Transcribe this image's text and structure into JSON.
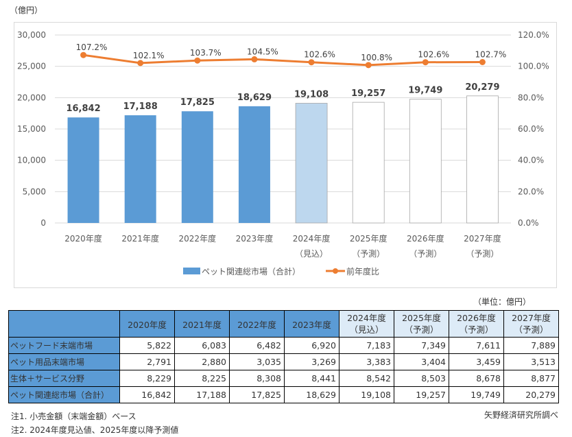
{
  "unit_label": "（億円）",
  "table_unit_label": "（単位：億円）",
  "chart_data": {
    "type": "bar+line",
    "categories": [
      "2020年度",
      "2021年度",
      "2022年度",
      "2023年度",
      "2024年度\n（見込）",
      "2025年度\n（予測）",
      "2026年度\n（予測）",
      "2027年度\n（予測）"
    ],
    "series": [
      {
        "name": "ペット関連総市場（合計）",
        "type": "bar",
        "axis": "left",
        "values": [
          16842,
          17188,
          17825,
          18629,
          19108,
          19257,
          19749,
          20279
        ],
        "labels": [
          "16,842",
          "17,188",
          "17,825",
          "18,629",
          "19,108",
          "19,257",
          "19,749",
          "20,279"
        ],
        "fill_colors": [
          "#5b9bd5",
          "#5b9bd5",
          "#5b9bd5",
          "#5b9bd5",
          "#bdd7ee",
          "#ffffff",
          "#ffffff",
          "#ffffff"
        ]
      },
      {
        "name": "前年度比",
        "type": "line",
        "axis": "right",
        "values": [
          107.2,
          102.1,
          103.7,
          104.5,
          102.6,
          100.8,
          102.6,
          102.7
        ],
        "labels": [
          "107.2%",
          "102.1%",
          "103.7%",
          "104.5%",
          "102.6%",
          "100.8%",
          "102.6%",
          "102.7%"
        ],
        "color": "#ed7d31"
      }
    ],
    "left_axis": {
      "ylim": [
        0,
        30000
      ],
      "ticks": [
        "0",
        "5,000",
        "10,000",
        "15,000",
        "20,000",
        "25,000",
        "30,000"
      ]
    },
    "right_axis": {
      "ylim": [
        0,
        120
      ],
      "ticks": [
        "0.0%",
        "20.0%",
        "40.0%",
        "60.0%",
        "80.0%",
        "100.0%",
        "120.0%"
      ]
    },
    "grid": true,
    "legend_position": "bottom"
  },
  "table": {
    "headers": [
      "2020年度",
      "2021年度",
      "2022年度",
      "2023年度",
      [
        "2024年度",
        "（見込）"
      ],
      [
        "2025年度",
        "（予測）"
      ],
      [
        "2026年度",
        "（予測）"
      ],
      [
        "2027年度",
        "（予測）"
      ]
    ],
    "rows": [
      {
        "label": "ペットフード末端市場",
        "values": [
          "5,822",
          "6,083",
          "6,482",
          "6,920",
          "7,183",
          "7,349",
          "7,611",
          "7,889"
        ]
      },
      {
        "label": "ペット用品末端市場",
        "values": [
          "2,791",
          "2,880",
          "3,035",
          "3,269",
          "3,383",
          "3,404",
          "3,459",
          "3,513"
        ]
      },
      {
        "label": "生体＋サービス分野",
        "values": [
          "8,229",
          "8,225",
          "8,308",
          "8,441",
          "8,542",
          "8,503",
          "8,678",
          "8,877"
        ]
      },
      {
        "label": "ペット関連総市場（合計）",
        "values": [
          "16,842",
          "17,188",
          "17,825",
          "18,629",
          "19,108",
          "19,257",
          "19,749",
          "20,279"
        ]
      }
    ]
  },
  "notes": [
    "注1. 小売金額（末端金額）ベース",
    "注2. 2024年度見込値、2025年度以降予測値"
  ],
  "source": "矢野経済研究所調べ"
}
